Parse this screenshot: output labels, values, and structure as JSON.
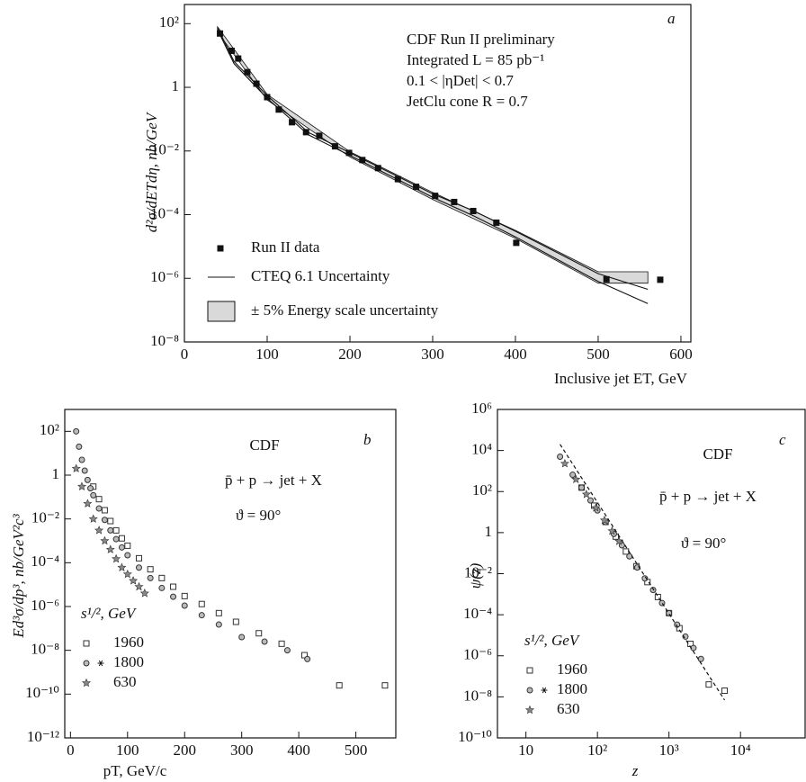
{
  "chart_data": [
    {
      "type": "scatter",
      "x_label": "Inclusive jet ET, GeV",
      "y_label": "d²σ/dETdη, nb/GeV",
      "annotations": [
        "a",
        "CDF Run II preliminary",
        "Integrated L = 85 pb⁻¹",
        "0.1 < |ηDet| < 0.7",
        "JetClu cone R = 0.7"
      ],
      "xlim": [
        0,
        612
      ],
      "ylim": [
        1e-08,
        400
      ],
      "ylog": true,
      "legend": "lower left",
      "xticks": [
        0,
        100,
        200,
        300,
        400,
        500,
        600
      ],
      "yticks": [
        {
          "value": 1e-08,
          "label": "10⁻⁸"
        },
        {
          "value": 1e-06,
          "label": "10⁻⁶"
        },
        {
          "value": 0.0001,
          "label": "10⁻⁴"
        },
        {
          "value": 0.01,
          "label": "10⁻²"
        },
        1,
        {
          "value": 100,
          "label": "10²"
        }
      ],
      "series": [
        {
          "name": "Run II data",
          "marker": "filled-square",
          "color": "#111",
          "x": [
            43,
            57,
            65,
            76,
            87,
            100,
            114,
            130,
            147,
            163,
            182,
            199,
            215,
            234,
            258,
            280,
            303,
            326,
            349,
            377,
            401,
            510,
            575
          ],
          "values": [
            49,
            14,
            8,
            3,
            1.3,
            0.49,
            0.2,
            0.08,
            0.039,
            0.03,
            0.014,
            0.0087,
            0.0052,
            0.0029,
            0.0013,
            0.00075,
            0.00039,
            0.00025,
            0.00013,
            5.6e-05,
            1.3e-05,
            9.3e-07,
            9e-07
          ]
        },
        {
          "name": "CTEQ 6.1 Uncertainty",
          "marker": "line-pair",
          "color": "#111",
          "x": [
            40,
            60,
            100,
            150,
            200,
            250,
            300,
            350,
            400,
            450,
            500,
            560
          ],
          "high": [
            75,
            6.5,
            0.55,
            0.038,
            0.0088,
            0.002,
            0.00045,
            0.00013,
            3e-05,
            6.5e-06,
            1.4e-06,
            4.5e-07
          ],
          "low": [
            65,
            5.5,
            0.45,
            0.032,
            0.0072,
            0.0016,
            0.00035,
            9e-05,
            2e-05,
            4e-06,
            8e-07,
            1.6e-07
          ]
        },
        {
          "name": "± 5% Energy scale uncertainty",
          "marker": "band",
          "color": "#d9d9d9",
          "x": [
            40,
            100,
            200,
            300,
            400,
            500,
            560
          ],
          "high": [
            80,
            0.6,
            0.0095,
            0.0005,
            3.2e-05,
            1.6e-06,
            1.6e-06
          ],
          "low": [
            55,
            0.4,
            0.0065,
            0.0003,
            1.8e-05,
            7e-07,
            7e-07
          ]
        }
      ]
    },
    {
      "type": "scatter",
      "x_label": "pT, GeV/c",
      "y_label": "Ed³σ/dp³, nb/GeV²c³",
      "annotations": [
        "b",
        "CDF",
        "p̄ + p → jet + X",
        "ϑ = 90°"
      ],
      "legend_title": "s¹/², GeV",
      "legend": "lower left",
      "xlim": [
        -10,
        570
      ],
      "ylim": [
        1e-12,
        1000
      ],
      "ylog": true,
      "xticks": [
        0,
        100,
        200,
        300,
        400,
        500
      ],
      "yticks": [
        {
          "value": 1e-12,
          "label": "10⁻¹²"
        },
        {
          "value": 1e-10,
          "label": "10⁻¹⁰"
        },
        {
          "value": 1e-08,
          "label": "10⁻⁸"
        },
        {
          "value": 1e-06,
          "label": "10⁻⁶"
        },
        {
          "value": 0.0001,
          "label": "10⁻⁴"
        },
        {
          "value": 0.01,
          "label": "10⁻²"
        },
        1,
        {
          "value": 100,
          "label": "10²"
        }
      ],
      "series": [
        {
          "name": "1960",
          "marker": "square",
          "color": "#333",
          "x": [
            40,
            50,
            60,
            70,
            80,
            90,
            100,
            120,
            140,
            160,
            180,
            200,
            230,
            260,
            290,
            330,
            370,
            410,
            471,
            551
          ],
          "values": [
            0.3,
            0.08,
            0.025,
            0.008,
            0.003,
            0.0013,
            0.0006,
            0.00016,
            5e-05,
            2e-05,
            8e-06,
            3e-06,
            1.3e-06,
            5e-07,
            2e-07,
            6e-08,
            2e-08,
            6e-09,
            2.5e-10,
            2.5e-10
          ]
        },
        {
          "name": "1800",
          "marker": "circle",
          "color": "#333",
          "x": [
            10,
            15,
            20,
            25,
            30,
            35,
            40,
            50,
            60,
            70,
            80,
            90,
            100,
            120,
            140,
            160,
            180,
            200,
            230,
            260,
            300,
            340,
            380,
            415
          ],
          "values": [
            100,
            20,
            5,
            1.6,
            0.6,
            0.25,
            0.12,
            0.03,
            0.009,
            0.003,
            0.0012,
            0.0005,
            0.00022,
            6e-05,
            2e-05,
            7e-06,
            2.8e-06,
            1.1e-06,
            4e-07,
            1.5e-07,
            4e-08,
            2.5e-08,
            1e-08,
            4e-09
          ]
        },
        {
          "name": "630",
          "marker": "star",
          "color": "#333",
          "x": [
            10,
            20,
            30,
            40,
            50,
            60,
            70,
            80,
            90,
            100,
            110,
            120,
            130
          ],
          "values": [
            2,
            0.3,
            0.05,
            0.01,
            0.003,
            0.001,
            0.0004,
            0.00015,
            6e-05,
            3e-05,
            1.5e-05,
            8e-06,
            4e-06
          ]
        }
      ]
    },
    {
      "type": "scatter",
      "x_label": "z",
      "y_label": "ψ(z)",
      "annotations": [
        "c",
        "CDF",
        "p̄ + p → jet + X",
        "ϑ = 90°"
      ],
      "legend_title": "s¹/², GeV",
      "legend": "lower left",
      "xlim": [
        4,
        80000
      ],
      "ylim": [
        1e-10,
        1000000
      ],
      "xlog": true,
      "ylog": true,
      "xticks": [
        10,
        {
          "value": 100,
          "label": "10²"
        },
        {
          "value": 1000,
          "label": "10³"
        },
        {
          "value": 10000,
          "label": "10⁴"
        }
      ],
      "yticks": [
        {
          "value": 1e-10,
          "label": "10⁻¹⁰"
        },
        {
          "value": 1e-08,
          "label": "10⁻⁸"
        },
        {
          "value": 1e-06,
          "label": "10⁻⁶"
        },
        {
          "value": 0.0001,
          "label": "10⁻⁴"
        },
        {
          "value": 0.01,
          "label": "10⁻²"
        },
        1,
        {
          "value": 100,
          "label": "10²"
        },
        {
          "value": 10000,
          "label": "10⁴"
        },
        {
          "value": 1000000,
          "label": "10⁶"
        }
      ],
      "series": [
        {
          "name": "1960",
          "marker": "square",
          "color": "#333",
          "x": [
            60,
            90,
            130,
            180,
            250,
            350,
            500,
            700,
            1000,
            1400,
            2000,
            3600,
            6000
          ],
          "values": [
            156,
            20.6,
            3.3,
            0.64,
            0.12,
            0.023,
            0.0039,
            0.00073,
            0.00012,
            2.2e-05,
            3.8e-06,
            4e-08,
            2e-08
          ]
        },
        {
          "name": "1800",
          "marker": "circle",
          "color": "#333",
          "x": [
            30,
            45,
            60,
            80,
            100,
            130,
            170,
            220,
            280,
            360,
            460,
            600,
            800,
            1000,
            1300,
            1700,
            2200,
            2800
          ],
          "values": [
            5000,
            660,
            156,
            37,
            12,
            3.3,
            0.86,
            0.24,
            0.07,
            0.02,
            0.0059,
            0.0016,
            0.00037,
            0.00012,
            3.3e-05,
            8.6e-06,
            2.4e-06,
            7e-07
          ]
        },
        {
          "name": "630",
          "marker": "star",
          "color": "#333",
          "x": [
            35,
            50,
            70,
            95,
            125,
            160,
            200
          ],
          "values": [
            2300,
            390,
            73,
            16,
            4,
            1.2,
            0.38
          ]
        },
        {
          "marker": "dashed",
          "color": "#111",
          "x": [
            30,
            6000
          ],
          "values": [
            20000,
            7e-09
          ]
        }
      ]
    }
  ]
}
